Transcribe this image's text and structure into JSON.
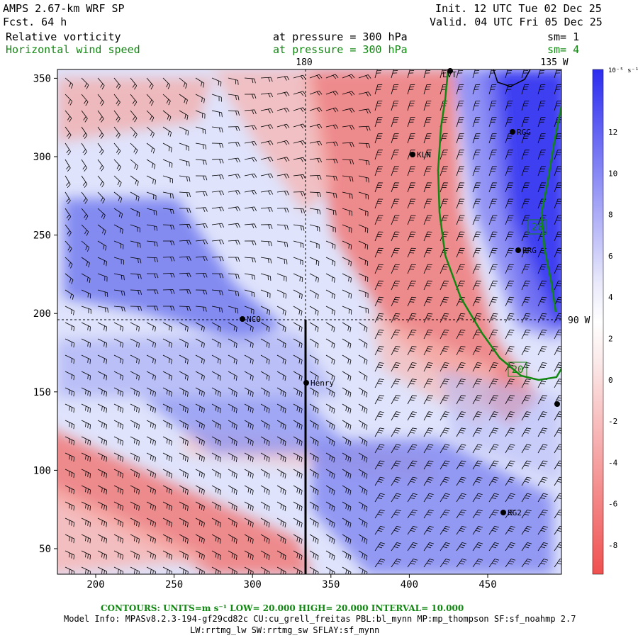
{
  "header": {
    "model": "AMPS 2.67-km WRF SP",
    "fcst": "Fcst.   64 h",
    "init": "Init. 12 UTC Tue 02 Dec 25",
    "valid": "Valid. 04 UTC Fri 05 Dec 25",
    "field1": "Relative vorticity",
    "field1_level": "at pressure =  300 hPa",
    "field1_sm": "sm= 1",
    "field2": "Horizontal wind speed",
    "field2_level": "at pressure =  300 hPa",
    "field2_sm": "sm= 4"
  },
  "map": {
    "lon_labels": {
      "top_180": "180",
      "top_135w": "135 W",
      "right_90w": "90 W"
    },
    "x_ticks": [
      "200",
      "250",
      "300",
      "350",
      "400",
      "450"
    ],
    "y_ticks": [
      "50",
      "100",
      "150",
      "200",
      "250",
      "300",
      "350"
    ],
    "stations": [
      {
        "name": "NCO"
      },
      {
        "name": "Henry"
      },
      {
        "name": "KLN"
      },
      {
        "name": "RGG"
      },
      {
        "name": "RRG"
      },
      {
        "name": "RG2"
      },
      {
        "name": "LVT"
      }
    ],
    "contour_labels": [
      "20",
      "20"
    ],
    "colors": {
      "positive": "#2c2cf0",
      "negative": "#f05050",
      "contour": "#118811",
      "barb": "#000000"
    }
  },
  "colorbar": {
    "units": "10⁻⁵ s⁻¹",
    "labels": [
      "12",
      "10",
      "8",
      "6",
      "4",
      "2",
      "0",
      "-2",
      "-4",
      "-6",
      "-8"
    ]
  },
  "footer": {
    "contours": "CONTOURS:  UNITS=m s⁻¹  LOW=  20.000      HIGH=  20.000      INTERVAL=   10.000",
    "model_info": "Model Info: MPASv8.2.3-194-gf29cd82c CU:cu_grell_freitas PBL:bl_mynn MP:mp_thompson SF:sf_noahmp 2.7",
    "model_info2": "LW:rrtmg_lw SW:rrtmg_sw SFLAY:sf_mynn"
  }
}
